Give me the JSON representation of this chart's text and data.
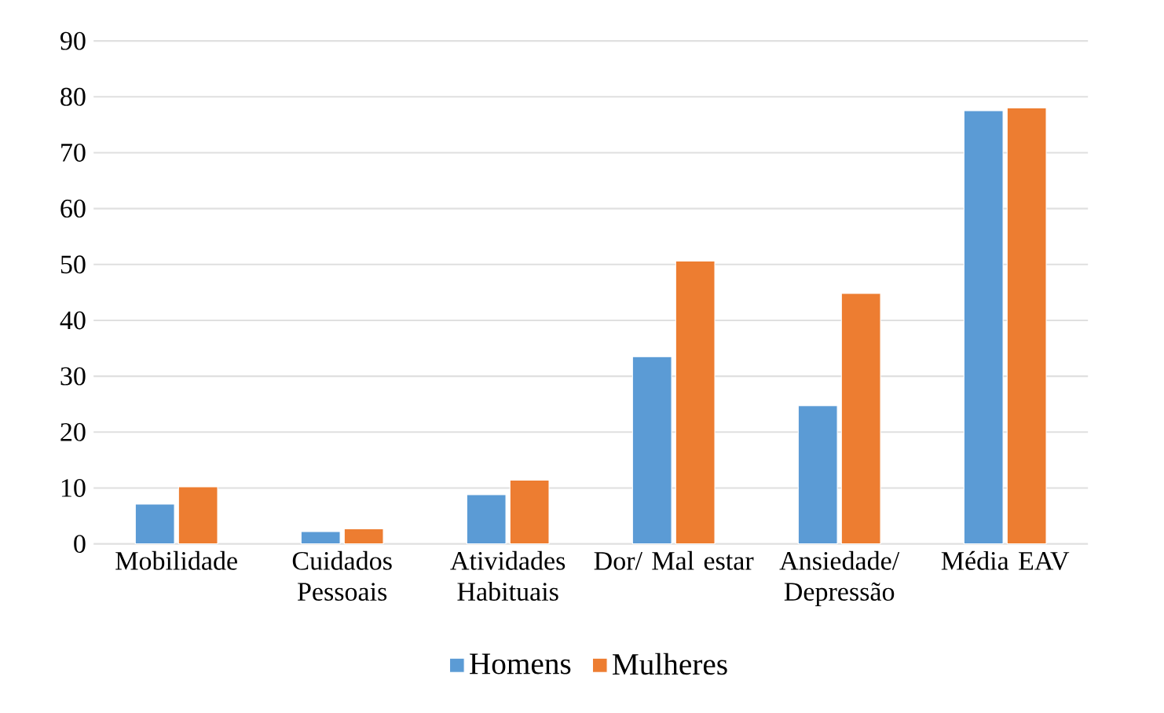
{
  "chart_data": {
    "type": "bar",
    "categories": [
      "Mobilidade",
      "Cuidados Pessoais",
      "Atividades Habituais",
      "Dor/ Mal estar",
      "Ansiedade/ Depressão",
      "Média EAV"
    ],
    "series": [
      {
        "name": "Homens",
        "color": "#5b9bd5",
        "values": [
          7.1,
          2.2,
          8.8,
          33.5,
          24.7,
          77.5
        ]
      },
      {
        "name": "Mulheres",
        "color": "#ed7d31",
        "values": [
          10.2,
          2.7,
          11.4,
          50.6,
          44.8,
          78.0
        ]
      }
    ],
    "ylim": [
      0,
      90
    ],
    "yticks": [
      0,
      10,
      20,
      30,
      40,
      50,
      60,
      70,
      80,
      90
    ],
    "grid": "y",
    "legend": "bottom"
  }
}
